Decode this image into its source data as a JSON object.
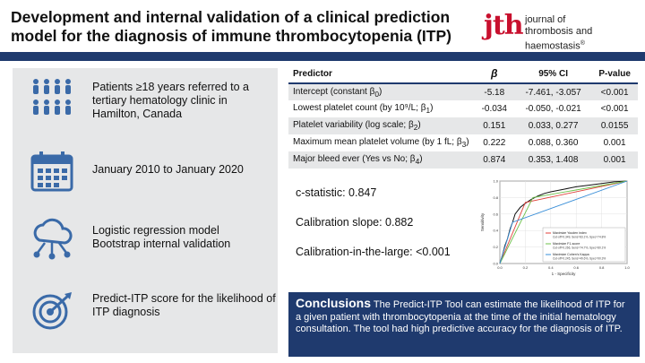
{
  "header": {
    "title": "Development and internal validation of a clinical prediction model for the diagnosis of immune thrombocytopenia (ITP)",
    "logo_mark": "jth",
    "logo_line1": "journal of",
    "logo_line2": "thrombosis and haemostasis",
    "logo_reg": "®"
  },
  "left_panel": {
    "items": [
      {
        "icon": "people-group-icon",
        "text": "Patients ≥18 years referred to a tertiary hematology clinic in Hamilton, Canada"
      },
      {
        "icon": "calendar-icon",
        "text": "January 2010 to January 2020"
      },
      {
        "icon": "cloud-network-icon",
        "text_line1": "Logistic regression model",
        "text_line2": "Bootstrap internal validation"
      },
      {
        "icon": "target-icon",
        "text": "Predict-ITP score for the likelihood of ITP diagnosis"
      }
    ]
  },
  "table": {
    "headers": [
      "Predictor",
      "β",
      "95% CI",
      "P-value"
    ],
    "rows": [
      {
        "predictor": "Intercept (constant β",
        "sub": "0",
        "suffix": ")",
        "beta": "-5.18",
        "ci": "-7.461, -3.057",
        "p": "<0.001"
      },
      {
        "predictor": "Lowest platelet count (by 10⁹/L; β",
        "sub": "1",
        "suffix": ")",
        "beta": "-0.034",
        "ci": "-0.050, -0.021",
        "p": "<0.001"
      },
      {
        "predictor": "Platelet variability (log scale; β",
        "sub": "2",
        "suffix": ")",
        "beta": "0.151",
        "ci": "0.033, 0.277",
        "p": "0.0155"
      },
      {
        "predictor": "Maximum mean platelet volume (by 1 fL; β",
        "sub": "3",
        "suffix": ")",
        "beta": "0.222",
        "ci": "0.088, 0.360",
        "p": "0.001"
      },
      {
        "predictor": "Major bleed ever (Yes vs No; β",
        "sub": "4",
        "suffix": ")",
        "beta": "0.874",
        "ci": "0.353, 1.408",
        "p": "0.001"
      }
    ]
  },
  "stats": {
    "c_statistic": "c-statistic: 0.847",
    "calibration_slope": "Calibration slope: 0.882",
    "calibration_large": "Calibration-in-the-large: <0.001"
  },
  "chart_data": {
    "type": "line",
    "xlabel": "1 - Specificity",
    "ylabel": "Sensitivity",
    "xlim": [
      0,
      1
    ],
    "ylim": [
      0,
      1
    ],
    "x_ticks": [
      "0.0",
      "0.2",
      "0.4",
      "0.6",
      "0.8",
      "1.0"
    ],
    "y_ticks": [
      "0.0",
      "0.2",
      "0.4",
      "0.6",
      "0.8",
      "1.0"
    ],
    "series": [
      {
        "color": "#111111",
        "points": [
          [
            0,
            0
          ],
          [
            0.02,
            0.1
          ],
          [
            0.04,
            0.22
          ],
          [
            0.06,
            0.3
          ],
          [
            0.08,
            0.42
          ],
          [
            0.1,
            0.5
          ],
          [
            0.12,
            0.6
          ],
          [
            0.16,
            0.68
          ],
          [
            0.2,
            0.73
          ],
          [
            0.25,
            0.78
          ],
          [
            0.3,
            0.82
          ],
          [
            0.35,
            0.85
          ],
          [
            0.4,
            0.87
          ],
          [
            0.5,
            0.9
          ],
          [
            0.6,
            0.93
          ],
          [
            0.7,
            0.95
          ],
          [
            0.8,
            0.97
          ],
          [
            0.9,
            0.99
          ],
          [
            1,
            1
          ]
        ]
      },
      {
        "color": "#e0403a",
        "points": [
          [
            0,
            0
          ],
          [
            0.2,
            0.74
          ],
          [
            1,
            1
          ]
        ]
      },
      {
        "color": "#6cc04a",
        "points": [
          [
            0,
            0
          ],
          [
            0.26,
            0.8
          ],
          [
            1,
            1
          ]
        ]
      },
      {
        "color": "#3a8fd8",
        "points": [
          [
            0,
            0
          ],
          [
            0.1,
            0.5
          ],
          [
            1,
            1
          ]
        ]
      }
    ],
    "legend": {
      "placement": "bottom-right",
      "entries": [
        {
          "title": "Maximize Youden index",
          "detail": "Cut-off=0.349, Sens=83.1%, Spec=74.8%"
        },
        {
          "title": "Maximize F1-score",
          "detail": "Cut-off=0.266, Sens=74.7%, Spec=80.1%"
        },
        {
          "title": "Maximize Cohen's Kappa",
          "detail": "Cut-off=0.245, Sens=49.6%, Spec=90.3%"
        }
      ]
    }
  },
  "conclusions": {
    "heading": "Conclusions",
    "text": "The Predict-ITP Tool can estimate the likelihood of ITP for a given patient with thrombocytopenia at the time of the initial hematology consultation. The tool had high predictive accuracy for the diagnosis of ITP."
  },
  "colors": {
    "navy": "#1f3a6e",
    "panel_gray": "#e6e7e8",
    "icon_blue": "#3a6aa8",
    "logo_red": "#c8102e"
  }
}
